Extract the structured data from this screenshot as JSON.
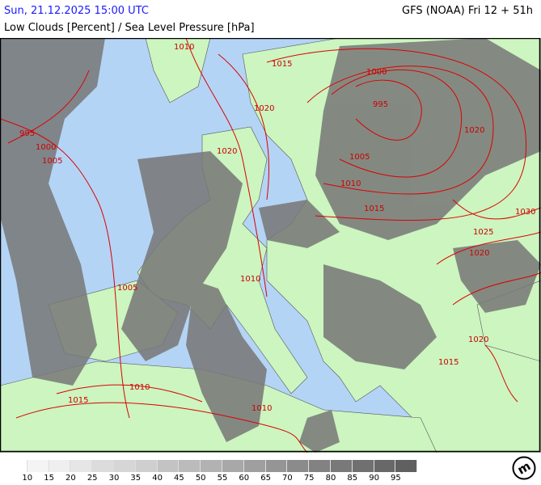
{
  "header": {
    "valid_time": "Sun, 21.12.2025 15:00 UTC",
    "model_run": "GFS (NOAA) Fri 12 + 51h",
    "parameter": "Low Clouds [Percent] / Sea Level Pressure [hPa]"
  },
  "colors": {
    "sea": "#b4d4f5",
    "land": "#ccf5c0",
    "isobar": "#d00000",
    "title_blue": "#1a1aff"
  },
  "isobar_labels": [
    "1010",
    "1015",
    "1000",
    "995",
    "1020",
    "1020",
    "995",
    "1000",
    "1005",
    "1005",
    "1010",
    "1015",
    "1020",
    "1030",
    "1025",
    "1020",
    "1010",
    "1005",
    "1020",
    "1015",
    "1010",
    "1015",
    "1010"
  ],
  "legend": {
    "colors": [
      "#ffffff",
      "#f4f4f4",
      "#efefef",
      "#e6e6e6",
      "#dcdcdc",
      "#d6d6d6",
      "#cfcfcf",
      "#c3c3c3",
      "#bbbbbb",
      "#b2b2b2",
      "#a8a8a8",
      "#9f9f9f",
      "#959595",
      "#8b8b8b",
      "#828282",
      "#797979",
      "#707070",
      "#686868",
      "#606060"
    ],
    "labels": [
      "10",
      "15",
      "20",
      "25",
      "30",
      "35",
      "40",
      "45",
      "50",
      "55",
      "60",
      "65",
      "70",
      "75",
      "80",
      "85",
      "90",
      "95"
    ]
  },
  "logo": "m"
}
